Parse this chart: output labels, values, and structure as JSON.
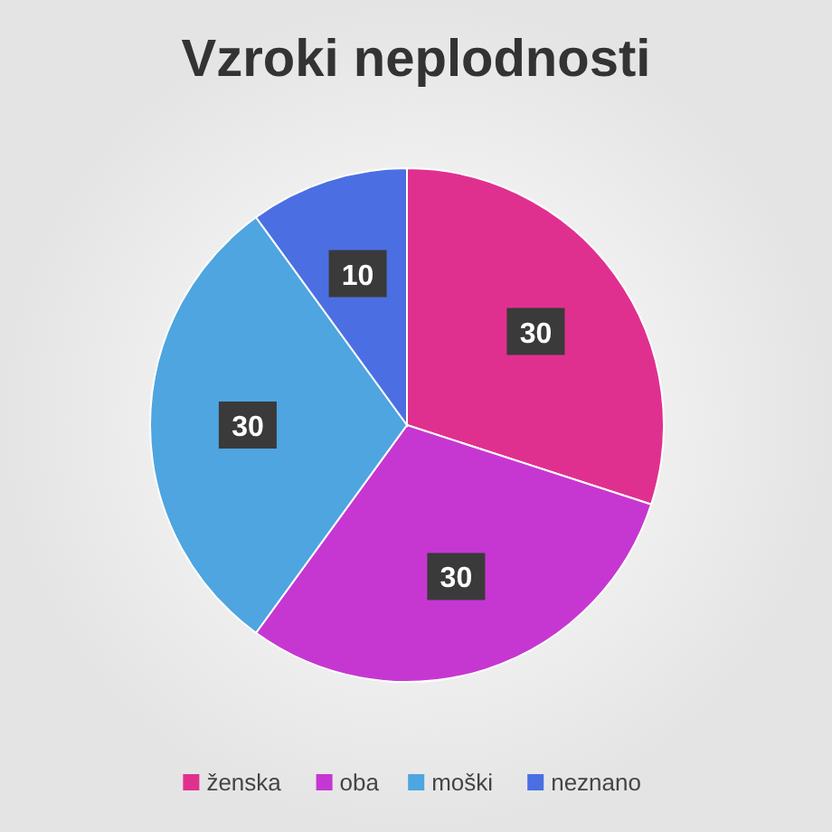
{
  "chart_data": {
    "type": "pie",
    "title": "Vzroki neplodnosti",
    "categories": [
      "ženska",
      "oba",
      "moški",
      "neznano"
    ],
    "values": [
      30,
      30,
      30,
      10
    ],
    "colors": [
      "#e0308f",
      "#c637d2",
      "#4ea5df",
      "#4b6fe2"
    ],
    "data_labels": true,
    "legend": "bottom"
  }
}
